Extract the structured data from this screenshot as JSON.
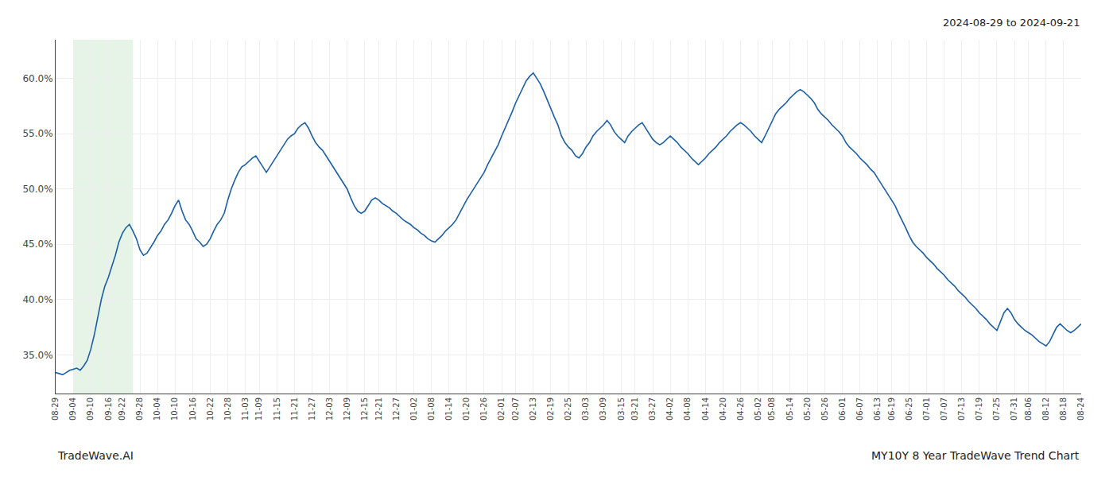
{
  "chart_data": {
    "type": "line",
    "annotations": [
      {
        "text": "2024-08-29 to 2024-09-21"
      },
      {
        "text": "TradeWave.AI"
      },
      {
        "text": "MY10Y 8 Year TradeWave Trend Chart"
      }
    ],
    "color": "#1a5fa8",
    "grid": true,
    "shade_range": [
      5,
      22
    ],
    "shade_color": "#c8e6c9",
    "xlim": [
      0,
      292
    ],
    "xticks": [
      {
        "value": 0,
        "label": "08-29"
      },
      {
        "value": 5,
        "label": "09-04"
      },
      {
        "value": 10,
        "label": "09-10"
      },
      {
        "value": 15,
        "label": "09-16"
      },
      {
        "value": 19,
        "label": "09-22"
      },
      {
        "value": 24,
        "label": "09-28"
      },
      {
        "value": 29,
        "label": "10-04"
      },
      {
        "value": 34,
        "label": "10-10"
      },
      {
        "value": 39,
        "label": "10-16"
      },
      {
        "value": 44,
        "label": "10-22"
      },
      {
        "value": 49,
        "label": "10-28"
      },
      {
        "value": 54,
        "label": "11-03"
      },
      {
        "value": 58,
        "label": "11-09"
      },
      {
        "value": 63,
        "label": "11-15"
      },
      {
        "value": 68,
        "label": "11-21"
      },
      {
        "value": 73,
        "label": "11-27"
      },
      {
        "value": 78,
        "label": "12-03"
      },
      {
        "value": 83,
        "label": "12-09"
      },
      {
        "value": 88,
        "label": "12-15"
      },
      {
        "value": 92,
        "label": "12-21"
      },
      {
        "value": 97,
        "label": "12-27"
      },
      {
        "value": 102,
        "label": "01-02"
      },
      {
        "value": 107,
        "label": "01-08"
      },
      {
        "value": 112,
        "label": "01-14"
      },
      {
        "value": 117,
        "label": "01-20"
      },
      {
        "value": 122,
        "label": "01-26"
      },
      {
        "value": 127,
        "label": "02-01"
      },
      {
        "value": 131,
        "label": "02-07"
      },
      {
        "value": 136,
        "label": "02-13"
      },
      {
        "value": 141,
        "label": "02-19"
      },
      {
        "value": 146,
        "label": "02-25"
      },
      {
        "value": 151,
        "label": "03-03"
      },
      {
        "value": 156,
        "label": "03-09"
      },
      {
        "value": 161,
        "label": "03-15"
      },
      {
        "value": 165,
        "label": "03-21"
      },
      {
        "value": 170,
        "label": "03-27"
      },
      {
        "value": 175,
        "label": "04-02"
      },
      {
        "value": 180,
        "label": "04-08"
      },
      {
        "value": 185,
        "label": "04-14"
      },
      {
        "value": 190,
        "label": "04-20"
      },
      {
        "value": 195,
        "label": "04-26"
      },
      {
        "value": 200,
        "label": "05-02"
      },
      {
        "value": 204,
        "label": "05-08"
      },
      {
        "value": 209,
        "label": "05-14"
      },
      {
        "value": 214,
        "label": "05-20"
      },
      {
        "value": 219,
        "label": "05-26"
      },
      {
        "value": 224,
        "label": "06-01"
      },
      {
        "value": 229,
        "label": "06-07"
      },
      {
        "value": 234,
        "label": "06-13"
      },
      {
        "value": 238,
        "label": "06-19"
      },
      {
        "value": 243,
        "label": "06-25"
      },
      {
        "value": 248,
        "label": "07-01"
      },
      {
        "value": 253,
        "label": "07-07"
      },
      {
        "value": 258,
        "label": "07-13"
      },
      {
        "value": 263,
        "label": "07-19"
      },
      {
        "value": 268,
        "label": "07-25"
      },
      {
        "value": 273,
        "label": "07-31"
      },
      {
        "value": 277,
        "label": "08-06"
      },
      {
        "value": 282,
        "label": "08-12"
      },
      {
        "value": 287,
        "label": "08-18"
      },
      {
        "value": 292,
        "label": "08-24"
      }
    ],
    "ylim": [
      0.315,
      0.635
    ],
    "yticks": [
      {
        "value": 0.35,
        "label": "35.0%"
      },
      {
        "value": 0.4,
        "label": "40.0%"
      },
      {
        "value": 0.45,
        "label": "45.0%"
      },
      {
        "value": 0.5,
        "label": "50.0%"
      },
      {
        "value": 0.55,
        "label": "55.0%"
      },
      {
        "value": 0.6,
        "label": "60.0%"
      }
    ],
    "values": [
      0.334,
      0.333,
      0.332,
      0.334,
      0.336,
      0.337,
      0.338,
      0.336,
      0.34,
      0.345,
      0.355,
      0.368,
      0.385,
      0.4,
      0.412,
      0.42,
      0.43,
      0.44,
      0.452,
      0.46,
      0.465,
      0.468,
      0.462,
      0.455,
      0.445,
      0.44,
      0.442,
      0.447,
      0.452,
      0.458,
      0.462,
      0.468,
      0.472,
      0.478,
      0.485,
      0.49,
      0.48,
      0.472,
      0.468,
      0.462,
      0.455,
      0.452,
      0.448,
      0.45,
      0.455,
      0.462,
      0.468,
      0.472,
      0.478,
      0.49,
      0.5,
      0.508,
      0.515,
      0.52,
      0.522,
      0.525,
      0.528,
      0.53,
      0.525,
      0.52,
      0.515,
      0.52,
      0.525,
      0.53,
      0.535,
      0.54,
      0.545,
      0.548,
      0.55,
      0.555,
      0.558,
      0.56,
      0.555,
      0.548,
      0.542,
      0.538,
      0.535,
      0.53,
      0.525,
      0.52,
      0.515,
      0.51,
      0.505,
      0.5,
      0.492,
      0.485,
      0.48,
      0.478,
      0.48,
      0.485,
      0.49,
      0.492,
      0.49,
      0.487,
      0.485,
      0.483,
      0.48,
      0.478,
      0.475,
      0.472,
      0.47,
      0.468,
      0.465,
      0.463,
      0.46,
      0.458,
      0.455,
      0.453,
      0.452,
      0.455,
      0.458,
      0.462,
      0.465,
      0.468,
      0.472,
      0.478,
      0.485,
      0.49,
      0.495,
      0.5,
      0.505,
      0.51,
      0.515,
      0.522,
      0.528,
      0.535,
      0.54,
      0.548,
      0.555,
      0.562,
      0.57,
      0.578,
      0.585,
      0.592,
      0.598,
      0.602,
      0.605,
      0.6,
      0.595,
      0.588,
      0.58,
      0.572,
      0.565,
      0.558,
      0.548,
      0.542,
      0.538,
      0.535,
      0.53,
      0.528,
      0.532,
      0.538,
      0.542,
      0.548,
      0.552,
      0.555,
      0.558,
      0.562,
      0.558,
      0.552,
      0.548,
      0.545,
      0.542,
      0.548,
      0.552,
      0.555,
      0.558,
      0.56,
      0.555,
      0.55,
      0.545,
      0.542,
      0.54,
      0.542,
      0.545,
      0.548,
      0.545,
      0.542,
      0.538,
      0.535,
      0.532,
      0.528,
      0.525,
      0.522,
      0.525,
      0.528,
      0.532,
      0.535,
      0.538,
      0.542,
      0.545,
      0.548,
      0.552,
      0.555,
      0.558,
      0.56,
      0.558,
      0.555,
      0.552,
      0.548,
      0.545,
      0.542,
      0.548,
      0.555,
      0.562,
      0.568,
      0.572,
      0.575,
      0.578,
      0.582,
      0.585,
      0.588,
      0.59,
      0.588,
      0.585,
      0.582,
      0.578,
      0.572,
      0.568,
      0.565,
      0.562,
      0.558,
      0.555,
      0.552,
      0.548,
      0.542,
      0.538,
      0.535,
      0.532,
      0.528,
      0.525,
      0.522,
      0.518,
      0.515,
      0.51,
      0.505,
      0.5,
      0.495,
      0.49,
      0.485,
      0.478,
      0.472,
      0.465,
      0.458,
      0.452,
      0.448,
      0.445,
      0.442,
      0.438,
      0.435,
      0.432,
      0.428,
      0.425,
      0.422,
      0.418,
      0.415,
      0.412,
      0.408,
      0.405,
      0.402,
      0.398,
      0.395,
      0.392,
      0.388,
      0.385,
      0.382,
      0.378,
      0.375,
      0.372,
      0.38,
      0.388,
      0.392,
      0.388,
      0.382,
      0.378,
      0.375,
      0.372,
      0.37,
      0.368,
      0.365,
      0.362,
      0.36,
      0.358,
      0.362,
      0.368,
      0.375,
      0.378,
      0.375,
      0.372,
      0.37,
      0.372,
      0.375,
      0.378
    ]
  }
}
